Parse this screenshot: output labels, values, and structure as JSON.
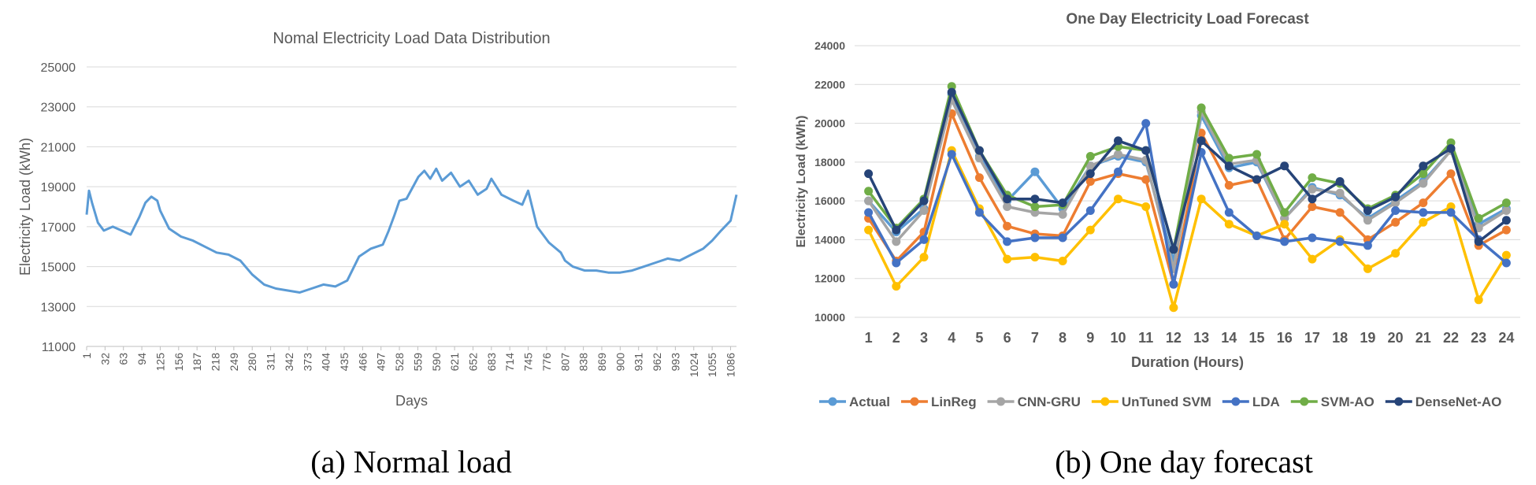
{
  "captions": {
    "a": "(a) Normal load",
    "b": "(b) One day forecast"
  },
  "chart_data": [
    {
      "type": "line",
      "title": "Nomal Electricity Load Data Distribution",
      "xlabel": "Days",
      "ylabel": "Electricity Load (kWh)",
      "ylim": [
        11000,
        25000
      ],
      "yticks": [
        11000,
        13000,
        15000,
        17000,
        19000,
        21000,
        23000,
        25000
      ],
      "xticks": [
        1,
        32,
        63,
        94,
        125,
        156,
        187,
        218,
        249,
        280,
        311,
        342,
        373,
        404,
        435,
        466,
        497,
        528,
        559,
        590,
        621,
        652,
        683,
        714,
        745,
        776,
        807,
        838,
        869,
        900,
        931,
        962,
        993,
        1024,
        1055,
        1086
      ],
      "xlim": [
        1,
        1096
      ],
      "grid": true,
      "legend": "none",
      "color": "#5b9bd5",
      "series": [
        {
          "name": "Load",
          "x": [
            1,
            5,
            10,
            20,
            30,
            45,
            60,
            75,
            90,
            100,
            110,
            120,
            125,
            140,
            160,
            180,
            200,
            220,
            240,
            260,
            280,
            300,
            320,
            340,
            360,
            380,
            400,
            420,
            440,
            460,
            480,
            500,
            510,
            520,
            528,
            540,
            560,
            570,
            580,
            590,
            600,
            615,
            630,
            645,
            660,
            675,
            683,
            700,
            720,
            735,
            745,
            760,
            780,
            800,
            807,
            820,
            840,
            860,
            880,
            900,
            920,
            940,
            960,
            980,
            1000,
            1020,
            1040,
            1055,
            1070,
            1086,
            1096
          ],
          "values": [
            17600,
            18800,
            18200,
            17200,
            16800,
            17000,
            16800,
            16600,
            17500,
            18200,
            18500,
            18300,
            17800,
            16900,
            16500,
            16300,
            16000,
            15700,
            15600,
            15300,
            14600,
            14100,
            13900,
            13800,
            13700,
            13900,
            14100,
            14000,
            14300,
            15500,
            15900,
            16100,
            16800,
            17600,
            18300,
            18400,
            19500,
            19800,
            19400,
            19900,
            19300,
            19700,
            19000,
            19300,
            18600,
            18900,
            19400,
            18600,
            18300,
            18100,
            18800,
            17000,
            16200,
            15700,
            15300,
            15000,
            14800,
            14800,
            14700,
            14700,
            14800,
            15000,
            15200,
            15400,
            15300,
            15600,
            15900,
            16300,
            16800,
            17300,
            18600
          ]
        }
      ]
    },
    {
      "type": "line",
      "title": "One Day Electricity Load Forecast",
      "xlabel": "Duration (Hours)",
      "ylabel": "Electricity Load (kWh)",
      "ylim": [
        10000,
        24000
      ],
      "yticks": [
        10000,
        12000,
        14000,
        16000,
        18000,
        20000,
        22000,
        24000
      ],
      "categories": [
        "1",
        "2",
        "3",
        "4",
        "5",
        "6",
        "7",
        "8",
        "9",
        "10",
        "11",
        "12",
        "13",
        "14",
        "15",
        "16",
        "17",
        "18",
        "19",
        "20",
        "21",
        "22",
        "23",
        "24"
      ],
      "grid": true,
      "legend": "bottom",
      "series": [
        {
          "name": "Actual",
          "color": "#5b9bd5",
          "values": [
            16000,
            14400,
            15600,
            21500,
            18300,
            16000,
            17500,
            15600,
            17800,
            18300,
            18000,
            12900,
            20400,
            17700,
            18000,
            15100,
            16700,
            16300,
            15100,
            16000,
            17000,
            18600,
            14800,
            15600
          ]
        },
        {
          "name": "LinReg",
          "color": "#ed7d31",
          "values": [
            15100,
            12900,
            14400,
            20500,
            17200,
            14700,
            14300,
            14200,
            17000,
            17400,
            17100,
            11700,
            19500,
            16800,
            17100,
            14000,
            15700,
            15400,
            14000,
            14900,
            15900,
            17400,
            13700,
            14500
          ]
        },
        {
          "name": "CNN-GRU",
          "color": "#a5a5a5",
          "values": [
            16000,
            13900,
            15500,
            21200,
            18200,
            15700,
            15400,
            15300,
            17800,
            18400,
            18100,
            12500,
            20600,
            17900,
            18100,
            15100,
            16600,
            16400,
            15000,
            15900,
            16900,
            18600,
            14600,
            15500
          ]
        },
        {
          "name": "UnTuned SVM",
          "color": "#ffc000",
          "values": [
            14500,
            11600,
            13100,
            18600,
            15600,
            13000,
            13100,
            12900,
            14500,
            16100,
            15700,
            10500,
            16100,
            14800,
            14200,
            14800,
            13000,
            14000,
            12500,
            13300,
            14900,
            15700,
            10900,
            13200
          ]
        },
        {
          "name": "LDA",
          "color": "#4472c4",
          "values": [
            15400,
            12800,
            14000,
            18400,
            15400,
            13900,
            14100,
            14100,
            15500,
            17500,
            20000,
            11700,
            18500,
            15400,
            14200,
            13900,
            14100,
            13900,
            13700,
            15500,
            15400,
            15400,
            14000,
            12800
          ]
        },
        {
          "name": "SVM-AO",
          "color": "#70ad47",
          "values": [
            16500,
            14600,
            16100,
            21900,
            18600,
            16300,
            15700,
            15800,
            18300,
            18800,
            18600,
            13500,
            20800,
            18200,
            18400,
            15400,
            17200,
            16900,
            15600,
            16300,
            17400,
            19000,
            15100,
            15900
          ]
        },
        {
          "name": "DenseNet-AO",
          "color": "#264478",
          "values": [
            17400,
            14500,
            16000,
            21600,
            18600,
            16100,
            16100,
            15900,
            17400,
            19100,
            18600,
            13500,
            19100,
            17800,
            17100,
            17800,
            16100,
            17000,
            15500,
            16200,
            17800,
            18700,
            13900,
            15000
          ]
        }
      ]
    }
  ]
}
